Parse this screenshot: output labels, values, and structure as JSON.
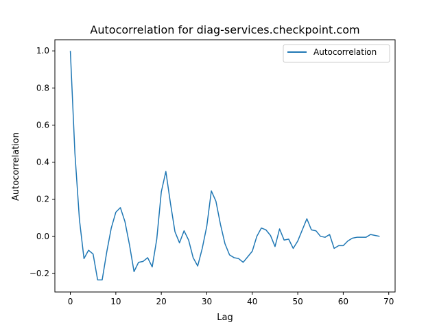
{
  "chart_data": {
    "type": "line",
    "title": "Autocorrelation for diag-services.checkpoint.com",
    "xlabel": "Lag",
    "ylabel": "Autocorrelation",
    "xlim": [
      -3.4,
      71.4
    ],
    "ylim": [
      -0.3,
      1.06
    ],
    "xticks": [
      0,
      10,
      20,
      30,
      40,
      50,
      60,
      70
    ],
    "yticks": [
      -0.2,
      0.0,
      0.2,
      0.4,
      0.6,
      0.8,
      1.0
    ],
    "xtick_labels": [
      "0",
      "10",
      "20",
      "30",
      "40",
      "50",
      "60",
      "70"
    ],
    "ytick_labels": [
      "−0.2",
      "0.0",
      "0.2",
      "0.4",
      "0.6",
      "0.8",
      "1.0"
    ],
    "grid": false,
    "legend_position": "top-right",
    "series": [
      {
        "name": "Autocorrelation",
        "color": "#1f77b4",
        "x": [
          0,
          1,
          2,
          3,
          4,
          5,
          6,
          7,
          8,
          9,
          10,
          11,
          12,
          13,
          14,
          15,
          16,
          17,
          18,
          19,
          20,
          21,
          22,
          23,
          24,
          25,
          26,
          27,
          28,
          29,
          30,
          31,
          32,
          33,
          34,
          35,
          36,
          37,
          38,
          39,
          40,
          41,
          42,
          43,
          44,
          45,
          46,
          47,
          48,
          49,
          50,
          51,
          52,
          53,
          54,
          55,
          56,
          57,
          58,
          59,
          60,
          61,
          62,
          63,
          64,
          65,
          66,
          67,
          68
        ],
        "y": [
          1.0,
          0.45,
          0.09,
          -0.12,
          -0.075,
          -0.095,
          -0.235,
          -0.235,
          -0.085,
          0.045,
          0.13,
          0.155,
          0.08,
          -0.045,
          -0.19,
          -0.14,
          -0.135,
          -0.115,
          -0.165,
          -0.015,
          0.24,
          0.35,
          0.18,
          0.025,
          -0.035,
          0.03,
          -0.02,
          -0.115,
          -0.16,
          -0.065,
          0.055,
          0.245,
          0.19,
          0.065,
          -0.04,
          -0.1,
          -0.115,
          -0.12,
          -0.14,
          -0.11,
          -0.08,
          0.0,
          0.045,
          0.035,
          0.005,
          -0.055,
          0.04,
          -0.02,
          -0.015,
          -0.065,
          -0.025,
          0.035,
          0.095,
          0.035,
          0.03,
          0.0,
          -0.005,
          0.01,
          -0.065,
          -0.05,
          -0.05,
          -0.025,
          -0.01,
          -0.005,
          -0.005,
          -0.005,
          0.01,
          0.005,
          0.0
        ]
      }
    ]
  }
}
